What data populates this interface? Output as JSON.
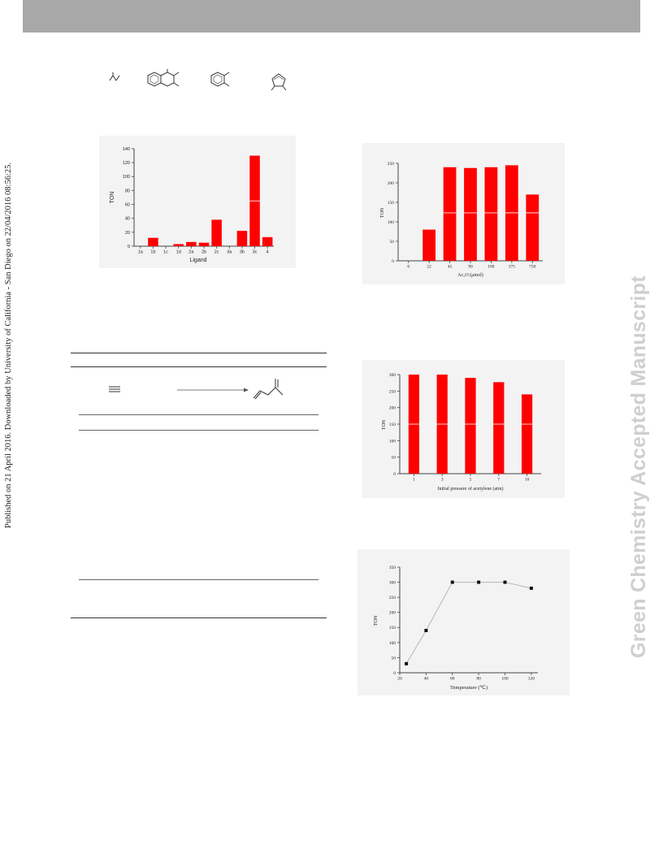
{
  "page": {
    "side_note": "Published on 21 April 2016. Downloaded by University of California - San Diego on 22/04/2016 08:56:25.",
    "watermark": "Green Chemistry Accepted Manuscript"
  },
  "colors": {
    "bar": "#ff0000",
    "header": "#a8a8a8",
    "panel": "#f3f3f3",
    "line": "#b5b5b5",
    "watermark": "#cfcfcf"
  },
  "chart_data": [
    {
      "type": "bar",
      "title": "",
      "xlabel": "Ligand",
      "ylabel": "TON",
      "categories": [
        "1a",
        "1b",
        "1c",
        "1d",
        "2a",
        "2b",
        "2c",
        "3a",
        "3b",
        "3c",
        "4"
      ],
      "values": [
        0,
        12,
        0,
        3,
        6,
        5,
        38,
        0,
        22,
        130,
        13
      ],
      "ylim": [
        0,
        140
      ],
      "yticks": [
        "0",
        "20",
        "40",
        "60",
        "80",
        "100",
        "120",
        "140"
      ],
      "grid": false
    },
    {
      "type": "bar",
      "title": "",
      "xlabel": "Ac₂O (μmol)",
      "ylabel": "TON",
      "categories": [
        "0",
        "22",
        "45",
        "90",
        "180",
        "375",
        "750"
      ],
      "values": [
        0,
        80,
        240,
        238,
        240,
        245,
        170
      ],
      "ylim": [
        0,
        250
      ],
      "yticks": [
        "0",
        "50",
        "100",
        "150",
        "200",
        "250"
      ],
      "grid": false
    },
    {
      "type": "bar",
      "title": "",
      "xlabel": "Initial pressure of acetylene (atm)",
      "ylabel": "TON",
      "categories": [
        "1",
        "3",
        "5",
        "7",
        "10"
      ],
      "values": [
        300,
        300,
        290,
        277,
        240
      ],
      "ylim": [
        0,
        300
      ],
      "yticks": [
        "0",
        "50",
        "100",
        "150",
        "200",
        "250",
        "300"
      ],
      "grid": false
    },
    {
      "type": "line",
      "title": "",
      "xlabel": "Temperature (℃)",
      "ylabel": "TON",
      "x": [
        25,
        40,
        60,
        80,
        100,
        120
      ],
      "y": [
        30,
        140,
        300,
        300,
        300,
        280
      ],
      "xlim": [
        20,
        125
      ],
      "ylim": [
        0,
        350
      ],
      "xticks": [
        "20",
        "40",
        "60",
        "80",
        "100",
        "120"
      ],
      "yticks": [
        "0",
        "50",
        "100",
        "150",
        "200",
        "250",
        "300",
        "350"
      ],
      "grid": false
    }
  ]
}
